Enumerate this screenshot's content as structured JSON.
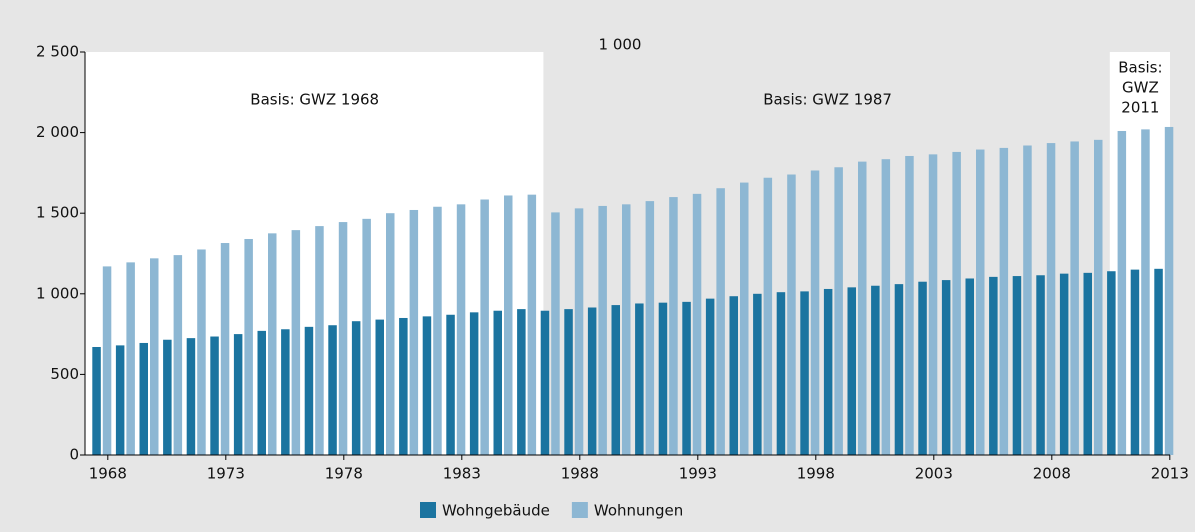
{
  "chart_data": {
    "type": "bar",
    "unit_label": "1 000",
    "categories": [
      "1968",
      null,
      null,
      null,
      null,
      "1973",
      null,
      null,
      null,
      null,
      "1978",
      null,
      null,
      null,
      null,
      "1983",
      null,
      null,
      null,
      null,
      "1988",
      null,
      null,
      null,
      null,
      "1993",
      null,
      null,
      null,
      null,
      "1998",
      null,
      null,
      null,
      null,
      "2003",
      null,
      null,
      null,
      null,
      "2008",
      null,
      null,
      null,
      null,
      "2013"
    ],
    "series": [
      {
        "name": "Wohngebäude",
        "color": "#1b74a0",
        "values": [
          670,
          680,
          695,
          715,
          725,
          735,
          750,
          770,
          780,
          795,
          805,
          830,
          840,
          850,
          860,
          870,
          885,
          895,
          905,
          895,
          905,
          915,
          930,
          940,
          945,
          950,
          970,
          985,
          1000,
          1010,
          1015,
          1030,
          1040,
          1050,
          1060,
          1075,
          1085,
          1095,
          1105,
          1110,
          1115,
          1125,
          1130,
          1140,
          1150,
          1155
        ]
      },
      {
        "name": "Wohnungen",
        "color": "#8db7d3",
        "values": [
          1170,
          1195,
          1220,
          1240,
          1275,
          1315,
          1340,
          1375,
          1395,
          1420,
          1445,
          1465,
          1500,
          1520,
          1540,
          1555,
          1585,
          1610,
          1615,
          1505,
          1530,
          1545,
          1555,
          1575,
          1600,
          1620,
          1655,
          1690,
          1720,
          1740,
          1765,
          1785,
          1820,
          1835,
          1855,
          1865,
          1880,
          1895,
          1905,
          1920,
          1935,
          1945,
          1955,
          2010,
          2020,
          2035
        ]
      }
    ],
    "ylim": [
      0,
      2500
    ],
    "yticks": [
      0,
      500,
      {
        "value": 1000,
        "label": "1 000"
      },
      {
        "value": 1500,
        "label": "1 500"
      },
      {
        "value": 2000,
        "label": "2 000"
      },
      {
        "value": 2500,
        "label": "2 500"
      }
    ],
    "annotations": [
      [
        "Basis: GWZ 1968"
      ],
      [
        "Basis: GWZ 1987"
      ],
      [
        "Basis:",
        "GWZ",
        "2011"
      ]
    ],
    "legend": "bottom"
  }
}
